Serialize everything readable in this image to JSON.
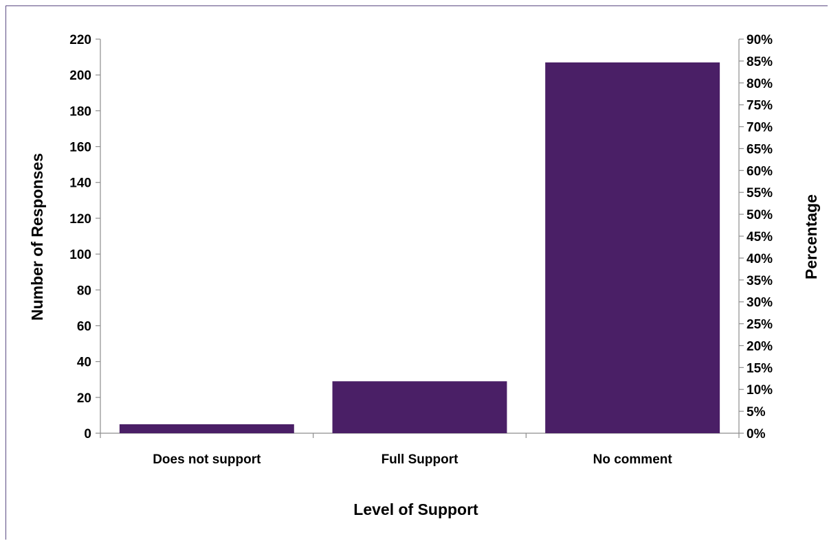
{
  "chart_data": {
    "type": "bar",
    "categories": [
      "Does not support",
      "Full Support",
      "No comment"
    ],
    "values": [
      5,
      29,
      207
    ],
    "xlabel": "Level of Support",
    "ylabel": "Number of Responses",
    "y2label": "Percentage",
    "ylim": [
      0,
      220
    ],
    "y2lim": [
      0,
      90
    ],
    "yticks": [
      "0",
      "20",
      "40",
      "60",
      "80",
      "100",
      "120",
      "140",
      "160",
      "180",
      "200",
      "220"
    ],
    "y2ticks": [
      "0%",
      "5%",
      "10%",
      "15%",
      "20%",
      "25%",
      "30%",
      "35%",
      "40%",
      "45%",
      "50%",
      "55%",
      "60%",
      "65%",
      "70%",
      "75%",
      "80%",
      "85%",
      "90%"
    ],
    "grid": false,
    "legend": "none",
    "bar_color": "#4a1f66"
  }
}
